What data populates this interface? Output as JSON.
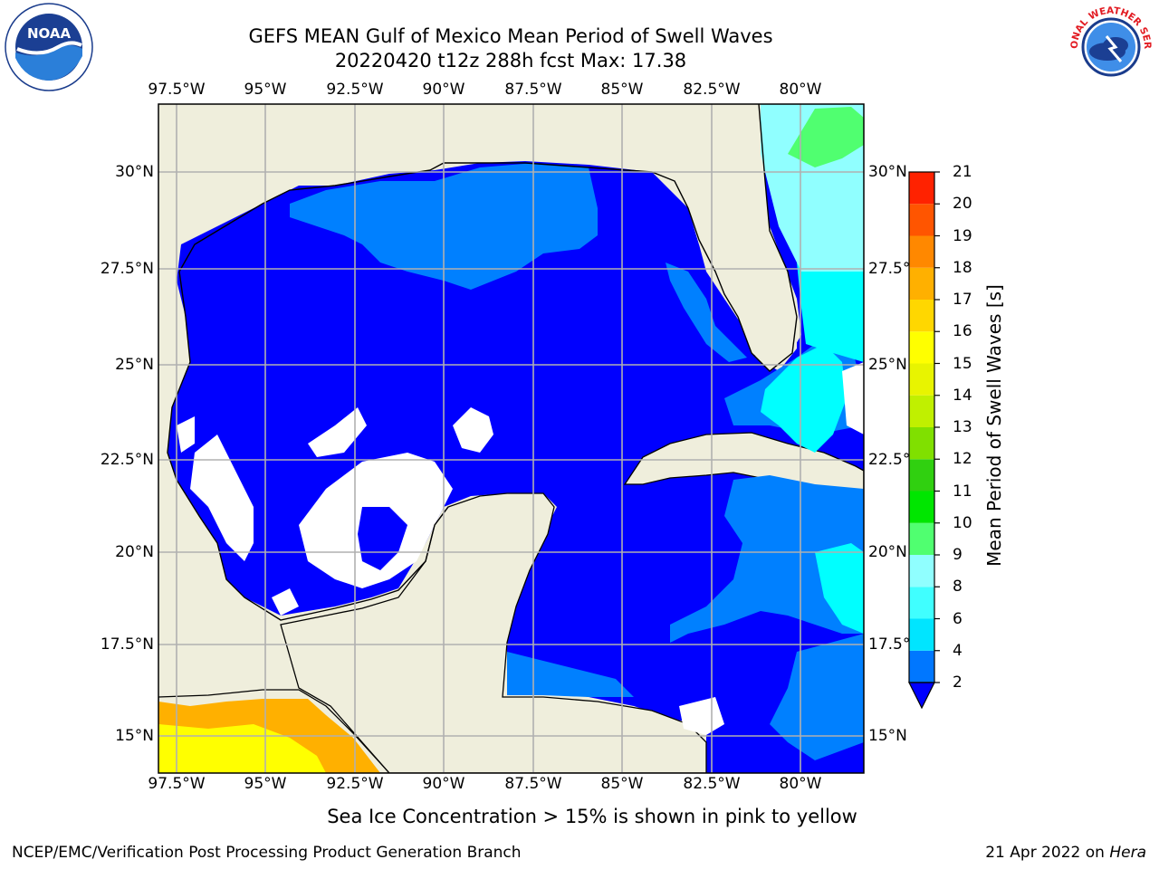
{
  "title": {
    "line1": "GEFS MEAN Gulf of Mexico Mean Period of Swell Waves",
    "line2": "20220420 t12z 288h fcst   Max: 17.38"
  },
  "map": {
    "lon_labels": [
      "97.5°W",
      "95°W",
      "92.5°W",
      "90°W",
      "87.5°W",
      "85°W",
      "82.5°W",
      "80°W"
    ],
    "lat_labels_left": [
      "30°N",
      "27.5°N",
      "25°N",
      "22.5°N",
      "20°N",
      "17.5°N",
      "15°N"
    ],
    "lat_labels_right": [
      "30°N",
      "27.5°",
      "25°N",
      "22.5°",
      "20°N",
      "17.5°",
      "15°N"
    ],
    "colors": {
      "land": "#efeedc",
      "deep_blue": "#0000ff",
      "blue": "#0080ff",
      "cyan": "#00ffff",
      "light_cyan": "#90ffff",
      "green": "#50ff70",
      "ice": "#ffd700"
    }
  },
  "colorbar": {
    "label": "Mean Period of Swell Waves [s]",
    "ticks": [
      "2",
      "4",
      "6",
      "8",
      "9",
      "10",
      "11",
      "12",
      "13",
      "14",
      "15",
      "16",
      "17",
      "18",
      "19",
      "20",
      "21"
    ],
    "colors": [
      "#0077ff",
      "#00e5ff",
      "#40ffff",
      "#90ffff",
      "#50ff70",
      "#00e600",
      "#30d010",
      "#80e000",
      "#c0f000",
      "#e8f400",
      "#ffff00",
      "#ffd700",
      "#ffb000",
      "#ff8800",
      "#ff5500",
      "#ff2200",
      "#ff0000"
    ]
  },
  "caption": "Sea Ice Concentration > 15% is shown in pink to yellow",
  "footer": {
    "left": "NCEP/EMC/Verification Post Processing Product Generation Branch",
    "date": "21 Apr 2022 on ",
    "machine": "Hera"
  },
  "logos": {
    "noaa": "NOAA",
    "nws": "NATIONAL WEATHER SERVICE"
  }
}
